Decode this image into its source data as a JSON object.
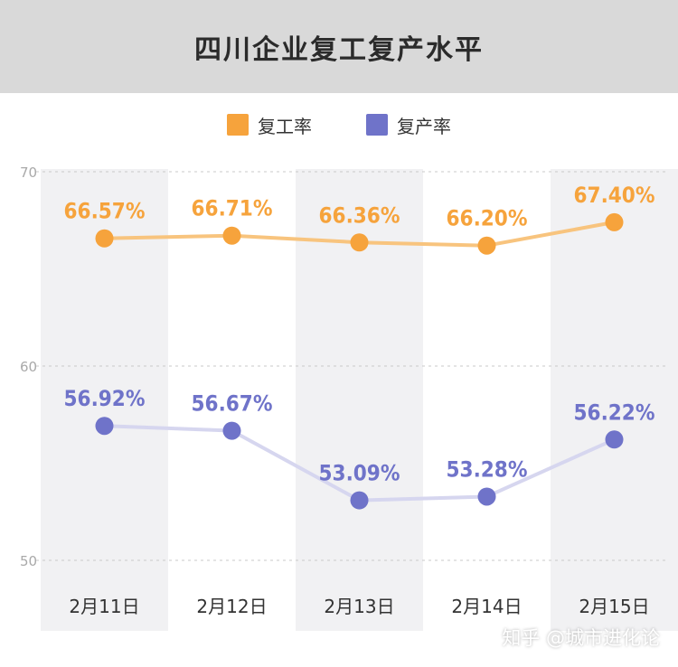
{
  "header": {
    "title": "四川企业复工复产水平"
  },
  "legend": {
    "items": [
      {
        "label": "复工率",
        "color": "#f6a33c"
      },
      {
        "label": "复产率",
        "color": "#6f73c9"
      }
    ]
  },
  "watermark": "知乎 @城市进化论",
  "chart_data": {
    "type": "line",
    "title": "四川企业复工复产水平",
    "categories": [
      "2月11日",
      "2月12日",
      "2月13日",
      "2月14日",
      "2月15日"
    ],
    "yticks": [
      "50",
      "60",
      "70"
    ],
    "ylim": [
      50,
      70
    ],
    "grid": "horizontal-dashed",
    "legend_position": "top-center",
    "series": [
      {
        "name": "复工率",
        "values": [
          66.57,
          66.71,
          66.36,
          66.2,
          67.4
        ],
        "labels": [
          "66.57%",
          "66.71%",
          "66.36%",
          "66.20%",
          "67.40%"
        ],
        "color": "#f6a33c",
        "line_color": "#f8c47e"
      },
      {
        "name": "复产率",
        "values": [
          56.92,
          56.67,
          53.09,
          53.28,
          56.22
        ],
        "labels": [
          "56.92%",
          "56.67%",
          "53.09%",
          "53.28%",
          "56.22%"
        ],
        "color": "#6f73c9",
        "line_color": "#d6d6ef"
      }
    ]
  }
}
